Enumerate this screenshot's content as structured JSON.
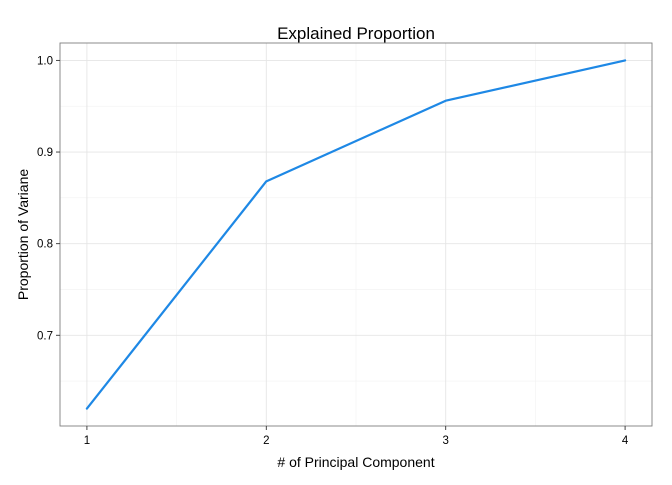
{
  "chart_data": {
    "type": "line",
    "title": "Explained Proportion",
    "xlabel": "# of Principal Component",
    "ylabel": "Proportion of Variane",
    "x": [
      1,
      2,
      3,
      4
    ],
    "series": [
      {
        "values": [
          0.62,
          0.868,
          0.956,
          1.0
        ]
      }
    ],
    "x_ticks": [
      "1",
      "2",
      "3",
      "4"
    ],
    "y_ticks": [
      "0.7",
      "0.8",
      "0.9",
      "1.0"
    ],
    "xlim": [
      0.85,
      4.15
    ],
    "ylim": [
      0.601,
      1.019
    ],
    "grid": true,
    "line_color": "#1e88e5"
  }
}
